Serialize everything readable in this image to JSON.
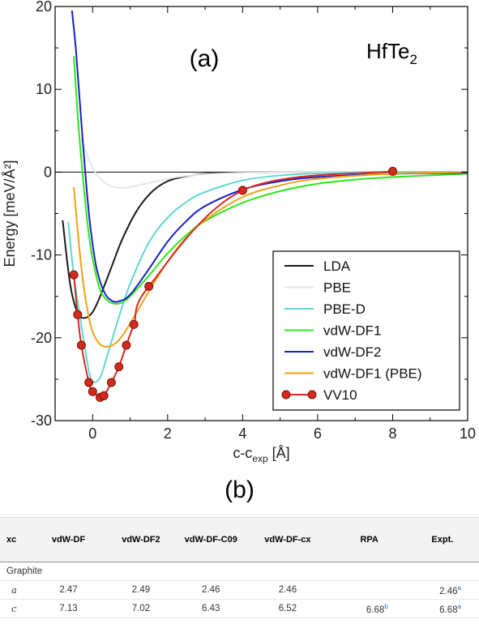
{
  "chart_data": {
    "type": "line",
    "panel_label": "(a)",
    "material": {
      "base": "HfTe",
      "subscript": "2"
    },
    "xlabel": {
      "base": "c-c",
      "subscript": "exp",
      "unit": " [Å]"
    },
    "ylabel": "Energy [meV/Å²]",
    "xlim": [
      -1,
      10
    ],
    "ylim": [
      -30,
      20
    ],
    "xticks": [
      0,
      2,
      4,
      6,
      8,
      10
    ],
    "yticks": [
      -30,
      -20,
      -10,
      0,
      10,
      20
    ],
    "legend_position": "bottom-right",
    "series": [
      {
        "name": "LDA",
        "color": "#1a1a1a",
        "markers": false,
        "x": [
          -0.8,
          -0.6,
          -0.4,
          -0.2,
          0.0,
          0.2,
          0.5,
          0.8,
          1.2,
          1.6,
          2.0,
          2.5,
          3.0,
          3.5,
          4.0,
          5.0,
          6.0,
          8.0,
          10.0
        ],
        "y": [
          -5.8,
          -13.5,
          -17.0,
          -17.6,
          -16.9,
          -15.0,
          -11.5,
          -8.0,
          -4.5,
          -2.3,
          -1.1,
          -0.5,
          -0.2,
          -0.1,
          -0.05,
          -0.01,
          0.0,
          0.0,
          0.0
        ]
      },
      {
        "name": "PBE",
        "color": "#e6e6e6",
        "markers": false,
        "x": [
          -0.3,
          -0.1,
          0.1,
          0.3,
          0.5,
          0.7,
          1.0,
          1.5,
          2.0,
          2.5,
          3.0,
          4.0,
          5.0,
          6.0,
          8.0,
          10.0
        ],
        "y": [
          4.0,
          1.5,
          -0.2,
          -1.2,
          -1.7,
          -1.9,
          -1.8,
          -1.3,
          -0.8,
          -0.45,
          -0.25,
          -0.08,
          -0.02,
          0.0,
          0.0,
          0.0
        ]
      },
      {
        "name": "PBE-D",
        "color": "#5fd8cf",
        "markers": false,
        "x": [
          -0.65,
          -0.5,
          -0.3,
          -0.1,
          0.0,
          0.2,
          0.4,
          0.7,
          1.0,
          1.5,
          2.0,
          2.5,
          3.0,
          4.0,
          5.0,
          6.0,
          8.0,
          10.0
        ],
        "y": [
          -6.0,
          -12.5,
          -18.5,
          -24.0,
          -25.3,
          -24.8,
          -22.0,
          -17.5,
          -13.5,
          -8.5,
          -5.5,
          -3.6,
          -2.4,
          -1.0,
          -0.4,
          -0.15,
          0.0,
          0.0
        ]
      },
      {
        "name": "vdW-DF1",
        "color": "#2ee81a",
        "markers": false,
        "x": [
          -0.5,
          -0.4,
          -0.3,
          -0.2,
          -0.1,
          0.0,
          0.2,
          0.4,
          0.6,
          0.8,
          1.0,
          1.5,
          2.0,
          2.5,
          3.0,
          4.0,
          5.0,
          6.0,
          7.0,
          8.0,
          10.0
        ],
        "y": [
          14.0,
          7.0,
          1.5,
          -3.5,
          -7.5,
          -10.5,
          -14.2,
          -15.5,
          -15.9,
          -15.7,
          -15.0,
          -12.5,
          -9.8,
          -7.6,
          -5.9,
          -3.7,
          -2.3,
          -1.4,
          -0.9,
          -0.6,
          -0.2
        ]
      },
      {
        "name": "vdW-DF2",
        "color": "#1a20c8",
        "markers": false,
        "x": [
          -0.55,
          -0.45,
          -0.35,
          -0.25,
          -0.15,
          -0.05,
          0.1,
          0.3,
          0.5,
          0.7,
          1.0,
          1.5,
          2.0,
          2.5,
          3.0,
          4.0,
          5.0,
          6.0,
          8.0,
          10.0
        ],
        "y": [
          19.5,
          15.0,
          9.0,
          3.0,
          -2.5,
          -7.0,
          -11.5,
          -14.4,
          -15.5,
          -15.6,
          -14.8,
          -11.7,
          -8.4,
          -5.9,
          -4.1,
          -2.1,
          -1.1,
          -0.6,
          -0.2,
          -0.1
        ]
      },
      {
        "name": "vdW-DF1 (PBE)",
        "color": "#f2a114",
        "markers": false,
        "x": [
          -0.5,
          -0.4,
          -0.3,
          -0.2,
          -0.1,
          0.0,
          0.2,
          0.4,
          0.6,
          0.8,
          1.0,
          1.5,
          2.0,
          2.5,
          3.0,
          4.0,
          5.0,
          6.0,
          8.0,
          10.0
        ],
        "y": [
          -1.8,
          -7.0,
          -11.5,
          -15.0,
          -17.5,
          -19.3,
          -20.8,
          -21.1,
          -20.7,
          -19.7,
          -18.3,
          -14.4,
          -10.8,
          -7.9,
          -5.8,
          -3.0,
          -1.6,
          -0.8,
          -0.2,
          0.0
        ]
      },
      {
        "name": "VV10",
        "color": "#d42a1e",
        "markers": true,
        "x": [
          -0.5,
          -0.4,
          -0.3,
          -0.1,
          0.0,
          0.2,
          0.3,
          0.5,
          0.7,
          0.9,
          1.1,
          1.5,
          4.0,
          8.0
        ],
        "y": [
          -12.4,
          -17.2,
          -20.9,
          -25.4,
          -26.5,
          -27.2,
          -27.0,
          -25.4,
          -23.5,
          -20.9,
          -18.4,
          -13.8,
          -2.2,
          0.1
        ]
      }
    ]
  },
  "panel_b_label": "(b)",
  "table": {
    "headers": [
      "xc",
      "vdW-DF",
      "vdW-DF2",
      "vdW-DF-C09",
      "vdW-DF-cx",
      "RPA",
      "Expt."
    ],
    "group": "Graphite",
    "rows": [
      {
        "label": "a",
        "values": [
          "2.47",
          "2.49",
          "2.46",
          "2.46",
          "",
          "2.46"
        ],
        "sups": [
          "",
          "",
          "",
          "",
          "",
          "a"
        ]
      },
      {
        "label": "c",
        "values": [
          "7.13",
          "7.02",
          "6.43",
          "6.52",
          "6.68",
          "6.68"
        ],
        "sups": [
          "",
          "",
          "",
          "",
          "b",
          "a"
        ]
      }
    ]
  }
}
